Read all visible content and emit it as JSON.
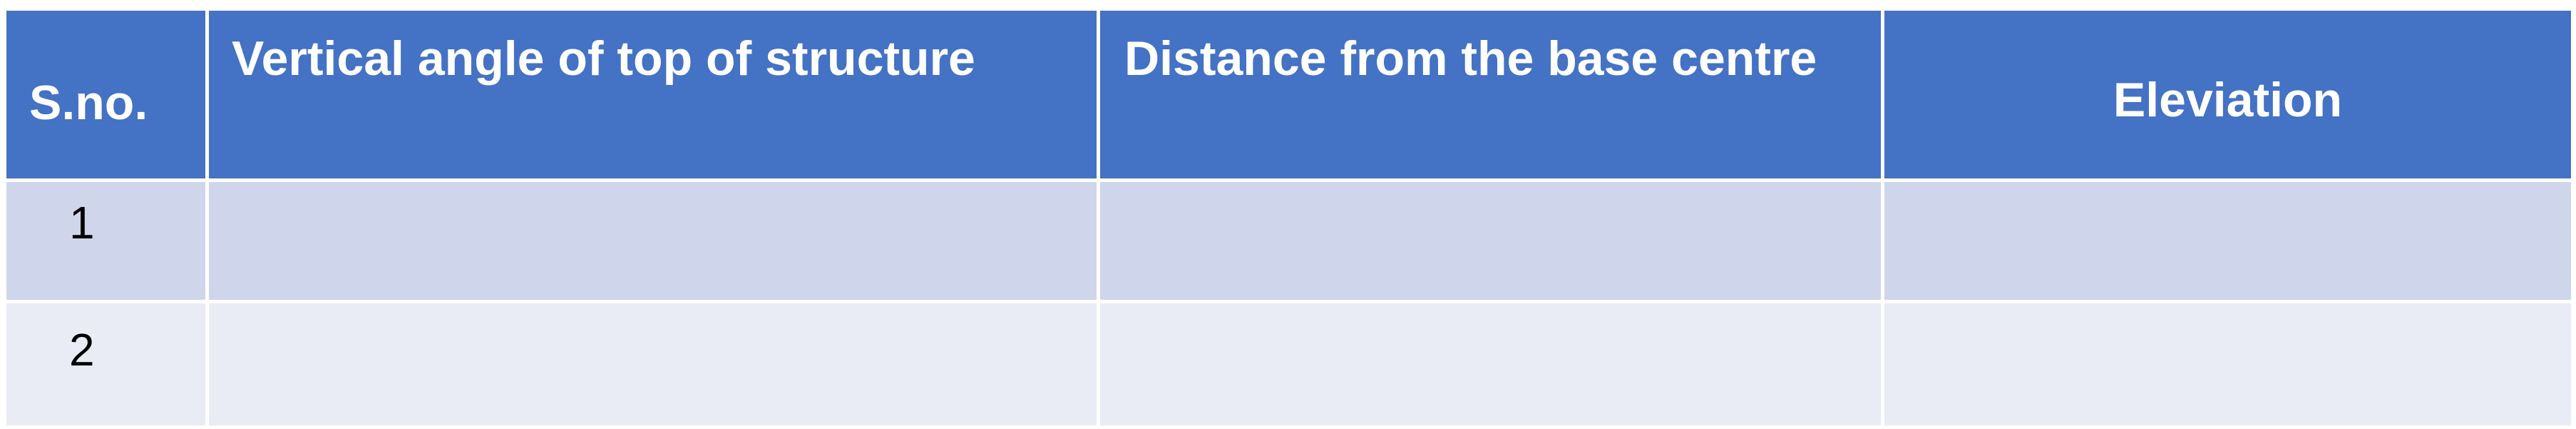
{
  "table": {
    "headers": [
      "S.no.",
      "Vertical angle of top of structure",
      "Distance from the base centre",
      "Eleviation"
    ],
    "rows": [
      {
        "sno": "1",
        "angle": "",
        "distance": "",
        "elevation": ""
      },
      {
        "sno": "2",
        "angle": "",
        "distance": "",
        "elevation": ""
      }
    ]
  },
  "colors": {
    "header_bg": "#4472c4",
    "row_odd_bg": "#cfd5ea",
    "row_even_bg": "#e9ebf5",
    "header_text": "#ffffff"
  }
}
